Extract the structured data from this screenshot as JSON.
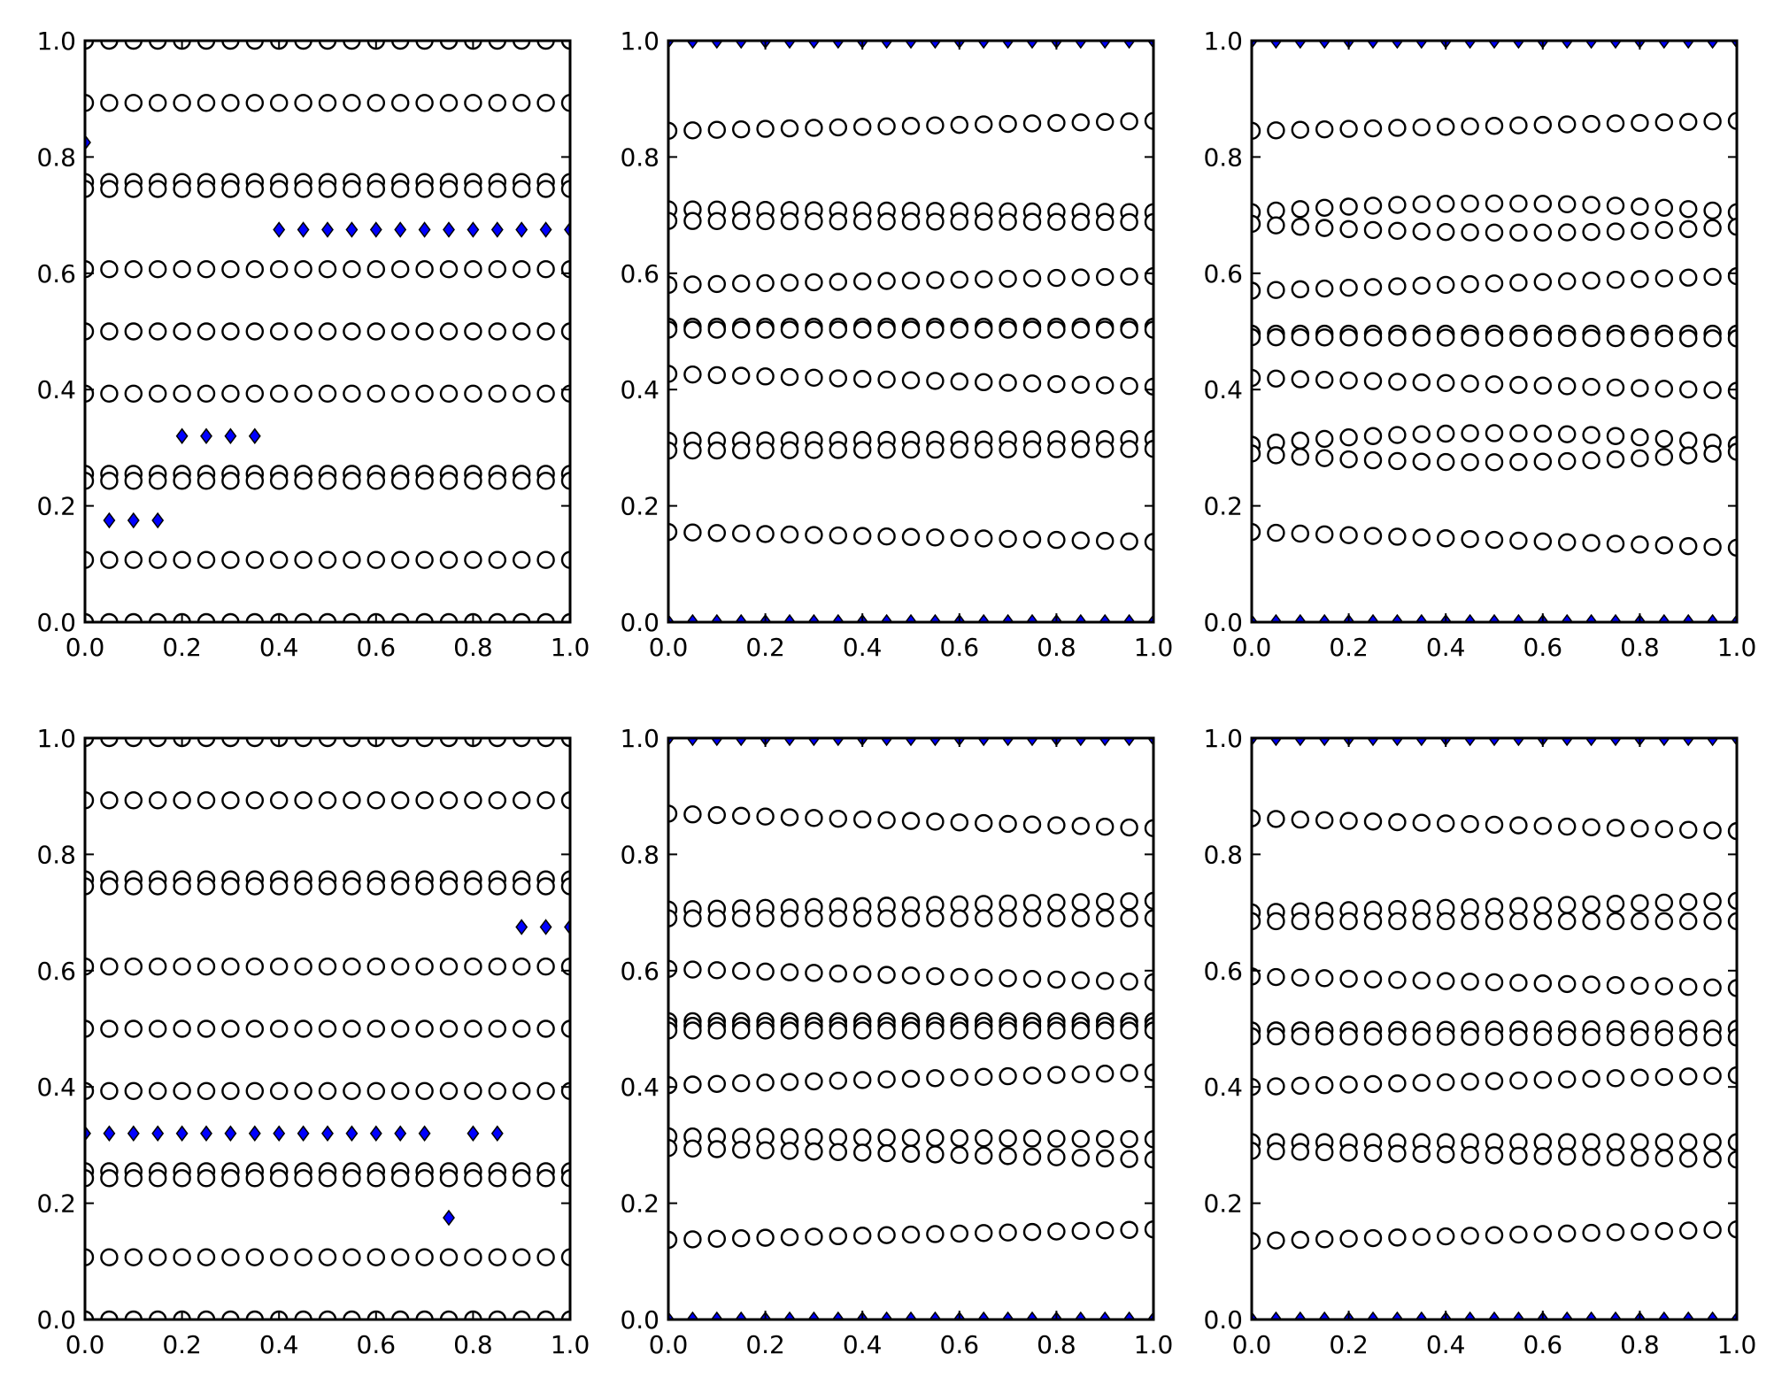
{
  "figure": {
    "rows": 2,
    "cols": 3
  },
  "colors": {
    "diamond_fill": "#0000ff",
    "diamond_edge": "#000000",
    "circle_edge": "#000000",
    "background": "#ffffff"
  },
  "chart_data": [
    {
      "type": "scatter",
      "title": "",
      "xlabel": "",
      "ylabel": "",
      "xlim": [
        0,
        1
      ],
      "ylim": [
        0,
        1
      ],
      "xticks": [
        "0.0",
        "0.2",
        "0.4",
        "0.6",
        "0.8",
        "1.0"
      ],
      "yticks": [
        "0.0",
        "0.2",
        "0.4",
        "0.6",
        "0.8",
        "1.0"
      ],
      "grid": false,
      "x_step": 0.05,
      "circle_series": [
        {
          "y0": 1.0,
          "y1": 1.0
        },
        {
          "y0": 0.893,
          "y1": 0.893
        },
        {
          "y0": 0.757,
          "y1": 0.757
        },
        {
          "y0": 0.745,
          "y1": 0.745
        },
        {
          "y0": 0.607,
          "y1": 0.607
        },
        {
          "y0": 0.5,
          "y1": 0.5
        },
        {
          "y0": 0.393,
          "y1": 0.393
        },
        {
          "y0": 0.255,
          "y1": 0.255
        },
        {
          "y0": 0.243,
          "y1": 0.243
        },
        {
          "y0": 0.107,
          "y1": 0.107
        },
        {
          "y0": 0.0,
          "y1": 0.0
        }
      ],
      "diamonds": [
        {
          "x": 0.0,
          "y": 0.825
        },
        {
          "x": 0.05,
          "y": 0.175
        },
        {
          "x": 0.1,
          "y": 0.175
        },
        {
          "x": 0.15,
          "y": 0.175
        },
        {
          "x": 0.2,
          "y": 0.32
        },
        {
          "x": 0.25,
          "y": 0.32
        },
        {
          "x": 0.3,
          "y": 0.32
        },
        {
          "x": 0.35,
          "y": 0.32
        },
        {
          "x": 0.4,
          "y": 0.675
        },
        {
          "x": 0.45,
          "y": 0.675
        },
        {
          "x": 0.5,
          "y": 0.675
        },
        {
          "x": 0.55,
          "y": 0.675
        },
        {
          "x": 0.6,
          "y": 0.675
        },
        {
          "x": 0.65,
          "y": 0.675
        },
        {
          "x": 0.7,
          "y": 0.675
        },
        {
          "x": 0.75,
          "y": 0.675
        },
        {
          "x": 0.8,
          "y": 0.675
        },
        {
          "x": 0.85,
          "y": 0.675
        },
        {
          "x": 0.9,
          "y": 0.675
        },
        {
          "x": 0.95,
          "y": 0.675
        },
        {
          "x": 1.0,
          "y": 0.675
        }
      ]
    },
    {
      "type": "scatter",
      "title": "",
      "xlabel": "",
      "ylabel": "",
      "xlim": [
        0,
        1
      ],
      "ylim": [
        0,
        1
      ],
      "xticks": [
        "0.0",
        "0.2",
        "0.4",
        "0.6",
        "0.8",
        "1.0"
      ],
      "yticks": [
        "0.0",
        "0.2",
        "0.4",
        "0.6",
        "0.8",
        "1.0"
      ],
      "grid": false,
      "x_step": 0.05,
      "circle_series": [
        {
          "y0": 0.845,
          "y1": 0.862
        },
        {
          "y0": 0.71,
          "y1": 0.705
        },
        {
          "y0": 0.69,
          "y1": 0.688
        },
        {
          "y0": 0.58,
          "y1": 0.595
        },
        {
          "y0": 0.508,
          "y1": 0.508
        },
        {
          "y0": 0.503,
          "y1": 0.503
        },
        {
          "y0": 0.427,
          "y1": 0.405
        },
        {
          "y0": 0.312,
          "y1": 0.315
        },
        {
          "y0": 0.295,
          "y1": 0.298
        },
        {
          "y0": 0.155,
          "y1": 0.138
        }
      ],
      "diamond_series": [
        {
          "y0": 1.0,
          "y1": 1.0
        },
        {
          "y0": 0.0,
          "y1": 0.0
        }
      ]
    },
    {
      "type": "scatter",
      "title": "",
      "xlabel": "",
      "ylabel": "",
      "xlim": [
        0,
        1
      ],
      "ylim": [
        0,
        1
      ],
      "xticks": [
        "0.0",
        "0.2",
        "0.4",
        "0.6",
        "0.8",
        "1.0"
      ],
      "yticks": [
        "0.0",
        "0.2",
        "0.4",
        "0.6",
        "0.8",
        "1.0"
      ],
      "grid": false,
      "x_step": 0.05,
      "circle_series": [
        {
          "y0": 0.845,
          "y1": 0.862
        },
        {
          "y0": 0.705,
          "ym": 0.72,
          "y1": 0.705
        },
        {
          "y0": 0.685,
          "ym": 0.67,
          "y1": 0.68
        },
        {
          "y0": 0.57,
          "y1": 0.595
        },
        {
          "y0": 0.496,
          "y1": 0.496
        },
        {
          "y0": 0.49,
          "y1": 0.488
        },
        {
          "y0": 0.42,
          "y1": 0.398
        },
        {
          "y0": 0.305,
          "ym": 0.325,
          "y1": 0.305
        },
        {
          "y0": 0.29,
          "ym": 0.275,
          "y1": 0.293
        },
        {
          "y0": 0.155,
          "y1": 0.128
        }
      ],
      "diamond_series": [
        {
          "y0": 1.0,
          "y1": 1.0
        },
        {
          "y0": 0.0,
          "y1": 0.0
        }
      ]
    },
    {
      "type": "scatter",
      "title": "",
      "xlabel": "",
      "ylabel": "",
      "xlim": [
        0,
        1
      ],
      "ylim": [
        0,
        1
      ],
      "xticks": [
        "0.0",
        "0.2",
        "0.4",
        "0.6",
        "0.8",
        "1.0"
      ],
      "yticks": [
        "0.0",
        "0.2",
        "0.4",
        "0.6",
        "0.8",
        "1.0"
      ],
      "grid": false,
      "x_step": 0.05,
      "circle_series": [
        {
          "y0": 1.0,
          "y1": 1.0
        },
        {
          "y0": 0.893,
          "y1": 0.893
        },
        {
          "y0": 0.757,
          "y1": 0.757
        },
        {
          "y0": 0.745,
          "y1": 0.745
        },
        {
          "y0": 0.607,
          "y1": 0.607
        },
        {
          "y0": 0.5,
          "y1": 0.5
        },
        {
          "y0": 0.393,
          "y1": 0.393
        },
        {
          "y0": 0.255,
          "y1": 0.255
        },
        {
          "y0": 0.243,
          "y1": 0.243
        },
        {
          "y0": 0.107,
          "y1": 0.107
        },
        {
          "y0": 0.0,
          "y1": 0.0
        }
      ],
      "diamonds": [
        {
          "x": 0.0,
          "y": 0.32
        },
        {
          "x": 0.05,
          "y": 0.32
        },
        {
          "x": 0.1,
          "y": 0.32
        },
        {
          "x": 0.15,
          "y": 0.32
        },
        {
          "x": 0.2,
          "y": 0.32
        },
        {
          "x": 0.25,
          "y": 0.32
        },
        {
          "x": 0.3,
          "y": 0.32
        },
        {
          "x": 0.35,
          "y": 0.32
        },
        {
          "x": 0.4,
          "y": 0.32
        },
        {
          "x": 0.45,
          "y": 0.32
        },
        {
          "x": 0.5,
          "y": 0.32
        },
        {
          "x": 0.55,
          "y": 0.32
        },
        {
          "x": 0.6,
          "y": 0.32
        },
        {
          "x": 0.65,
          "y": 0.32
        },
        {
          "x": 0.7,
          "y": 0.32
        },
        {
          "x": 0.75,
          "y": 0.175
        },
        {
          "x": 0.8,
          "y": 0.32
        },
        {
          "x": 0.85,
          "y": 0.32
        },
        {
          "x": 0.9,
          "y": 0.675
        },
        {
          "x": 0.95,
          "y": 0.675
        },
        {
          "x": 1.0,
          "y": 0.675
        }
      ]
    },
    {
      "type": "scatter",
      "title": "",
      "xlabel": "",
      "ylabel": "",
      "xlim": [
        0,
        1
      ],
      "ylim": [
        0,
        1
      ],
      "xticks": [
        "0.0",
        "0.2",
        "0.4",
        "0.6",
        "0.8",
        "1.0"
      ],
      "yticks": [
        "0.0",
        "0.2",
        "0.4",
        "0.6",
        "0.8",
        "1.0"
      ],
      "grid": false,
      "x_step": 0.05,
      "circle_series": [
        {
          "y0": 0.87,
          "y1": 0.845
        },
        {
          "y0": 0.705,
          "y1": 0.72
        },
        {
          "y0": 0.69,
          "y1": 0.69
        },
        {
          "y0": 0.603,
          "y1": 0.58
        },
        {
          "y0": 0.513,
          "y1": 0.513
        },
        {
          "y0": 0.505,
          "y1": 0.505
        },
        {
          "y0": 0.497,
          "y1": 0.497
        },
        {
          "y0": 0.403,
          "y1": 0.425
        },
        {
          "y0": 0.315,
          "y1": 0.31
        },
        {
          "y0": 0.295,
          "y1": 0.275
        },
        {
          "y0": 0.137,
          "y1": 0.155
        }
      ],
      "diamond_series": [
        {
          "y0": 1.0,
          "y1": 1.0
        },
        {
          "y0": 0.0,
          "y1": 0.0
        }
      ]
    },
    {
      "type": "scatter",
      "title": "",
      "xlabel": "",
      "ylabel": "",
      "xlim": [
        0,
        1
      ],
      "ylim": [
        0,
        1
      ],
      "xticks": [
        "0.0",
        "0.2",
        "0.4",
        "0.6",
        "0.8",
        "1.0"
      ],
      "yticks": [
        "0.0",
        "0.2",
        "0.4",
        "0.6",
        "0.8",
        "1.0"
      ],
      "grid": false,
      "x_step": 0.05,
      "circle_series": [
        {
          "y0": 0.862,
          "y1": 0.84
        },
        {
          "y0": 0.7,
          "y1": 0.72
        },
        {
          "y0": 0.685,
          "y1": 0.685
        },
        {
          "y0": 0.59,
          "y1": 0.57
        },
        {
          "y0": 0.497,
          "y1": 0.5
        },
        {
          "y0": 0.487,
          "y1": 0.485
        },
        {
          "y0": 0.4,
          "y1": 0.42
        },
        {
          "y0": 0.305,
          "y1": 0.305
        },
        {
          "y0": 0.29,
          "y1": 0.275
        },
        {
          "y0": 0.135,
          "y1": 0.155
        }
      ],
      "diamond_series": [
        {
          "y0": 1.0,
          "y1": 1.0
        },
        {
          "y0": 0.0,
          "y1": 0.0
        }
      ]
    }
  ]
}
